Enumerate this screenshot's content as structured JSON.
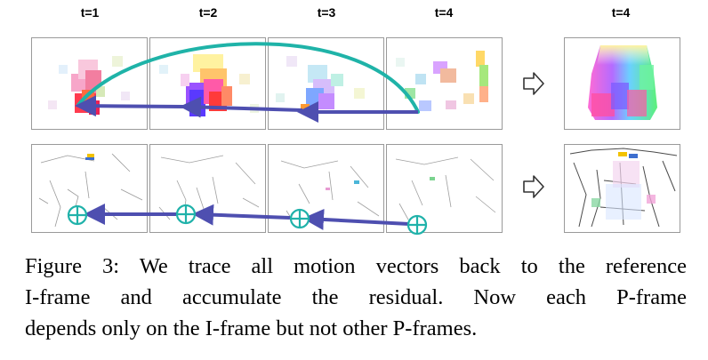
{
  "figure": {
    "column_labels": [
      "t=1",
      "t=2",
      "t=3",
      "t=4"
    ],
    "result_label": "t=4",
    "rows": [
      {
        "name": "motion-vectors-row"
      },
      {
        "name": "residuals-row"
      }
    ]
  },
  "caption": {
    "lines": [
      "Figure 3: We trace all motion vectors back to the reference",
      "I-frame and accumulate the residual.  Now each P-frame",
      "depends only on the I-frame but not other P-frames."
    ]
  },
  "colors": {
    "trace_arrow": "#4e4fb0",
    "arc": "#1fb3a8",
    "circle": "#20b2aa",
    "panel_border": "#9a9a9a"
  },
  "icons": [
    "right-arrow-icon",
    "circle-plus-icon"
  ]
}
